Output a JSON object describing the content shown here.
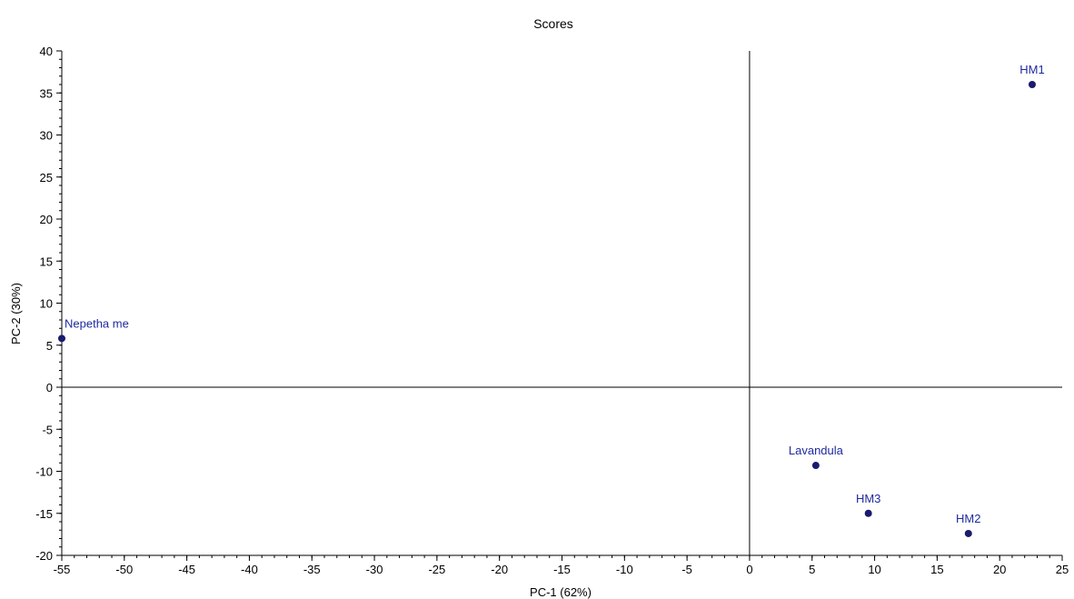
{
  "chart_data": {
    "type": "scatter",
    "title": "Scores",
    "xlabel": "PC-1 (62%)",
    "ylabel": "PC-2 (30%)",
    "xlim": [
      -55,
      25
    ],
    "ylim": [
      -20,
      40
    ],
    "x_ticks": [
      -55,
      -50,
      -45,
      -40,
      -35,
      -30,
      -25,
      -20,
      -15,
      -10,
      -5,
      0,
      5,
      10,
      15,
      20,
      25
    ],
    "y_ticks": [
      -20,
      -15,
      -10,
      -5,
      0,
      5,
      10,
      15,
      20,
      25,
      30,
      35,
      40
    ],
    "x_minor_step": 1,
    "y_minor_step": 1,
    "grid": false,
    "zero_lines": true,
    "point_color": "#1a1a6e",
    "label_color": "#1f2a9e",
    "points": [
      {
        "label": "HM1",
        "x": 22.6,
        "y": 36.0
      },
      {
        "label": "Nepetha me",
        "x": -55.0,
        "y": 5.8
      },
      {
        "label": "Lavandula",
        "x": 5.3,
        "y": -9.3
      },
      {
        "label": "HM3",
        "x": 9.5,
        "y": -15.0
      },
      {
        "label": "HM2",
        "x": 17.5,
        "y": -17.4
      }
    ]
  }
}
